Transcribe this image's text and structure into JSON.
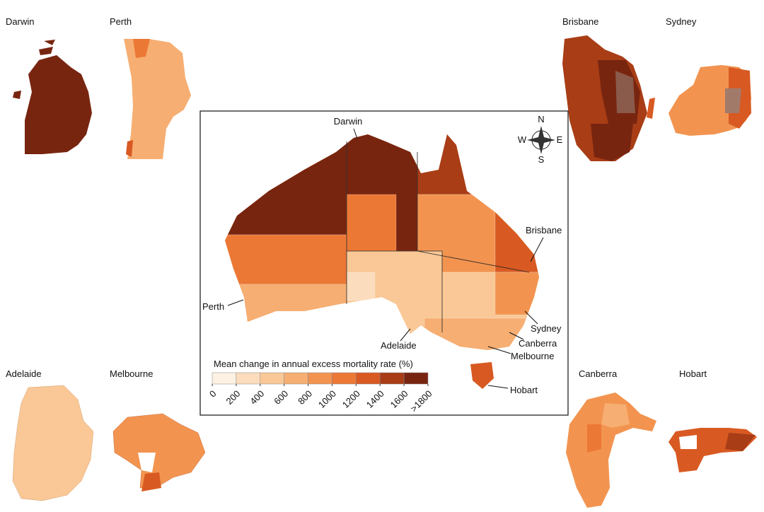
{
  "insets": [
    {
      "label": "Darwin"
    },
    {
      "label": "Perth"
    },
    {
      "label": "Brisbane"
    },
    {
      "label": "Sydney"
    },
    {
      "label": "Adelaide"
    },
    {
      "label": "Melbourne"
    },
    {
      "label": "Canberra"
    },
    {
      "label": "Hobart"
    }
  ],
  "main_map": {
    "labels": [
      "Darwin",
      "Brisbane",
      "Perth",
      "Sydney",
      "Canberra",
      "Adelaide",
      "Melbourne",
      "Hobart"
    ],
    "compass": {
      "n": "N",
      "e": "E",
      "s": "S",
      "w": "W"
    }
  },
  "legend": {
    "title": "Mean change in annual excess mortality rate (%)",
    "ticks": [
      0,
      200,
      400,
      600,
      800,
      1000,
      1200,
      1400,
      1600,
      {
        "value": 1800,
        "label": ">1800"
      }
    ],
    "colors": [
      "#fdf1e4",
      "#fbdcbc",
      "#f9c896",
      "#f6ae72",
      "#f29450",
      "#ec7836",
      "#d85a22",
      "#a83d16",
      "#782510"
    ]
  }
}
